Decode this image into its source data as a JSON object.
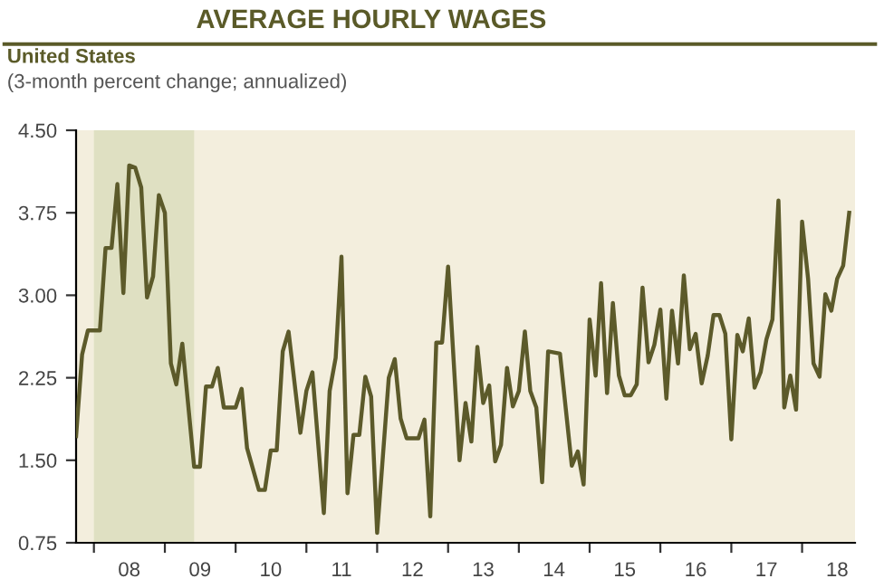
{
  "chart_data": {
    "type": "line",
    "title": "AVERAGE HOURLY WAGES",
    "subtitle": "United States",
    "annotations": [
      "(3-month percent change; annualized)"
    ],
    "x": [
      "2007-10",
      "2007-11",
      "2007-12",
      "2008-02",
      "2008-03",
      "2008-04",
      "2008-05",
      "2008-06",
      "2008-07",
      "2008-08",
      "2008-09",
      "2008-10",
      "2008-11",
      "2008-12",
      "2009-01",
      "2009-02",
      "2009-03",
      "2009-04",
      "2009-06",
      "2009-07",
      "2009-08",
      "2009-09",
      "2009-10",
      "2009-11",
      "2010-01",
      "2010-02",
      "2010-03",
      "2010-05",
      "2010-06",
      "2010-07",
      "2010-08",
      "2010-09",
      "2010-10",
      "2010-12",
      "2011-01",
      "2011-02",
      "2011-04",
      "2011-05",
      "2011-06",
      "2011-07",
      "2011-08",
      "2011-09",
      "2011-10",
      "2011-11",
      "2011-12",
      "2012-01",
      "2012-03",
      "2012-04",
      "2012-05",
      "2012-06",
      "2012-08",
      "2012-09",
      "2012-10",
      "2012-11",
      "2012-12",
      "2013-01",
      "2013-03",
      "2013-04",
      "2013-05",
      "2013-06",
      "2013-07",
      "2013-08",
      "2013-09",
      "2013-10",
      "2013-11",
      "2013-12",
      "2014-01",
      "2014-02",
      "2014-03",
      "2014-04",
      "2014-05",
      "2014-06",
      "2014-08",
      "2014-10",
      "2014-11",
      "2014-12",
      "2015-01",
      "2015-02",
      "2015-03",
      "2015-04",
      "2015-05",
      "2015-06",
      "2015-07",
      "2015-08",
      "2015-09",
      "2015-10",
      "2015-11",
      "2015-12",
      "2016-01",
      "2016-02",
      "2016-03",
      "2016-04",
      "2016-05",
      "2016-06",
      "2016-07",
      "2016-08",
      "2016-09",
      "2016-10",
      "2016-11",
      "2016-12",
      "2017-01",
      "2017-02",
      "2017-03",
      "2017-04",
      "2017-05",
      "2017-06",
      "2017-07",
      "2017-08",
      "2017-09",
      "2017-10",
      "2017-11",
      "2017-12",
      "2018-01",
      "2018-02",
      "2018-03",
      "2018-04",
      "2018-05",
      "2018-06",
      "2018-07",
      "2018-08",
      "2018-09"
    ],
    "series": [
      {
        "color": "#5c5a2a",
        "values": [
          1.72,
          2.46,
          2.68,
          2.68,
          3.43,
          3.43,
          4.01,
          3.02,
          4.18,
          4.16,
          3.98,
          2.98,
          3.17,
          3.91,
          3.75,
          2.38,
          2.19,
          2.56,
          1.44,
          1.44,
          2.17,
          2.17,
          2.34,
          1.98,
          1.98,
          2.15,
          1.61,
          1.23,
          1.23,
          1.59,
          1.59,
          2.49,
          2.67,
          1.75,
          2.13,
          2.3,
          1.02,
          2.13,
          2.43,
          3.35,
          1.2,
          1.73,
          1.73,
          2.26,
          2.08,
          0.84,
          2.25,
          2.42,
          1.88,
          1.7,
          1.7,
          1.87,
          0.99,
          2.57,
          2.57,
          3.26,
          1.5,
          2.02,
          1.67,
          2.53,
          2.02,
          2.18,
          1.49,
          1.64,
          2.34,
          1.99,
          2.13,
          2.67,
          2.13,
          1.98,
          1.3,
          2.49,
          2.47,
          1.45,
          1.58,
          1.28,
          2.78,
          2.27,
          3.11,
          2.11,
          2.93,
          2.27,
          2.09,
          2.09,
          2.19,
          3.07,
          2.39,
          2.55,
          2.87,
          2.06,
          2.86,
          2.38,
          3.18,
          2.51,
          2.65,
          2.2,
          2.45,
          2.82,
          2.82,
          2.65,
          1.69,
          2.64,
          2.49,
          2.79,
          2.16,
          2.3,
          2.6,
          2.78,
          3.86,
          1.98,
          2.27,
          1.96,
          3.67,
          3.15,
          2.38,
          2.26,
          3.01,
          2.86,
          3.15,
          3.27,
          3.75
        ]
      }
    ],
    "xlim": [
      "2007-10",
      "2018-10"
    ],
    "xticks": [
      {
        "value": "2008-01",
        "label": null
      },
      {
        "value": "2008-07",
        "label": "08"
      },
      {
        "value": "2009-01",
        "label": null
      },
      {
        "value": "2009-07",
        "label": "09"
      },
      {
        "value": "2010-01",
        "label": null
      },
      {
        "value": "2010-07",
        "label": "10"
      },
      {
        "value": "2011-01",
        "label": null
      },
      {
        "value": "2011-07",
        "label": "11"
      },
      {
        "value": "2012-01",
        "label": null
      },
      {
        "value": "2012-07",
        "label": "12"
      },
      {
        "value": "2013-01",
        "label": null
      },
      {
        "value": "2013-07",
        "label": "13"
      },
      {
        "value": "2014-01",
        "label": null
      },
      {
        "value": "2014-07",
        "label": "14"
      },
      {
        "value": "2015-01",
        "label": null
      },
      {
        "value": "2015-07",
        "label": "15"
      },
      {
        "value": "2016-01",
        "label": null
      },
      {
        "value": "2016-07",
        "label": "16"
      },
      {
        "value": "2017-01",
        "label": null
      },
      {
        "value": "2017-07",
        "label": "17"
      },
      {
        "value": "2018-01",
        "label": null
      },
      {
        "value": "2018-07",
        "label": "18"
      }
    ],
    "ylim": [
      0.75,
      4.5
    ],
    "yticks": [
      {
        "value": 0.75,
        "label": "0.75"
      },
      {
        "value": 1.5,
        "label": "1.50"
      },
      {
        "value": 2.25,
        "label": "2.25"
      },
      {
        "value": 3.0,
        "label": "3.00"
      },
      {
        "value": 3.75,
        "label": "3.75"
      },
      {
        "value": 4.5,
        "label": "4.50"
      }
    ],
    "bands": [
      {
        "axis": "x",
        "from": "2008-01",
        "to": "2009-06",
        "color": "#dfe0c2"
      }
    ],
    "grid": false,
    "marker": "none",
    "line_style": "solid"
  }
}
